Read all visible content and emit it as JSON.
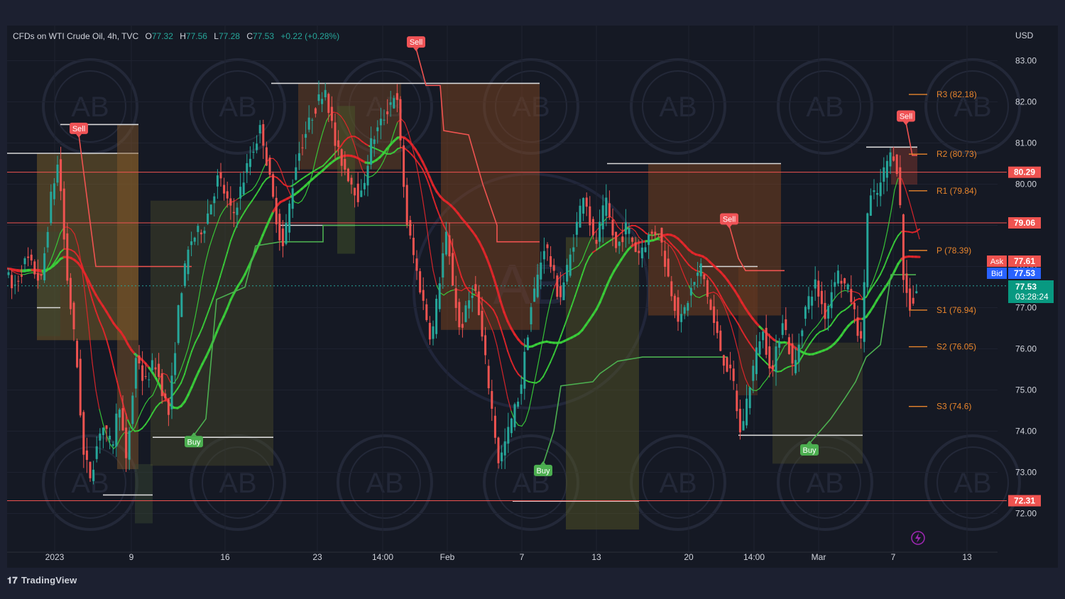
{
  "header": {
    "symbol": "CFDs on WTI Crude Oil, 4h, TVC",
    "open_label": "O",
    "open": "77.32",
    "high_label": "H",
    "high": "77.56",
    "low_label": "L",
    "low": "77.28",
    "close_label": "C",
    "close": "77.53",
    "change": "+0.22 (+0.28%)"
  },
  "currency": "USD",
  "brand": "TradingView",
  "colors": {
    "up": "#26a69a",
    "down": "#ef5350",
    "bg": "#151924",
    "sell": "#f05356",
    "buy": "#4caf50",
    "pivot": "#e8852c",
    "ask": "#ef5350",
    "bid": "#2962ff",
    "last": "#089981"
  },
  "chart_data": {
    "type": "candlestick",
    "title": "CFDs on WTI Crude Oil, 4h, TVC",
    "ylim": [
      71.5,
      83.5
    ],
    "y_ticks": [
      "83.00",
      "82.00",
      "81.00",
      "80.00",
      "79.00",
      "78.00",
      "77.00",
      "76.00",
      "75.00",
      "74.00",
      "73.00",
      "72.00"
    ],
    "x_ticks": [
      "2023",
      "9",
      "16",
      "23",
      "14:00",
      "Feb",
      "7",
      "13",
      "20",
      "14:00",
      "Mar",
      "7",
      "13"
    ],
    "price_path": [
      [
        0,
        78.5
      ],
      [
        20,
        77.4
      ],
      [
        40,
        78.2
      ],
      [
        60,
        77.6
      ],
      [
        75,
        79.8
      ],
      [
        85,
        80.6
      ],
      [
        95,
        78.0
      ],
      [
        110,
        75.8
      ],
      [
        120,
        73.4
      ],
      [
        130,
        72.9
      ],
      [
        145,
        74.2
      ],
      [
        160,
        73.6
      ],
      [
        170,
        74.8
      ],
      [
        180,
        73.2
      ],
      [
        195,
        76.0
      ],
      [
        205,
        75.1
      ],
      [
        220,
        75.7
      ],
      [
        240,
        74.4
      ],
      [
        255,
        77.2
      ],
      [
        270,
        78.6
      ],
      [
        290,
        79.0
      ],
      [
        310,
        80.2
      ],
      [
        330,
        79.2
      ],
      [
        350,
        80.4
      ],
      [
        370,
        81.4
      ],
      [
        385,
        79.8
      ],
      [
        400,
        78.4
      ],
      [
        420,
        80.6
      ],
      [
        440,
        81.6
      ],
      [
        460,
        82.4
      ],
      [
        475,
        80.9
      ],
      [
        490,
        80.3
      ],
      [
        510,
        79.6
      ],
      [
        525,
        81.0
      ],
      [
        545,
        81.7
      ],
      [
        560,
        82.3
      ],
      [
        575,
        79.1
      ],
      [
        590,
        77.8
      ],
      [
        610,
        76.2
      ],
      [
        630,
        78.8
      ],
      [
        650,
        76.4
      ],
      [
        670,
        77.6
      ],
      [
        690,
        75.2
      ],
      [
        705,
        73.2
      ],
      [
        720,
        74.1
      ],
      [
        735,
        75.0
      ],
      [
        750,
        77.0
      ],
      [
        770,
        78.6
      ],
      [
        790,
        77.2
      ],
      [
        805,
        78.2
      ],
      [
        825,
        79.9
      ],
      [
        840,
        78.4
      ],
      [
        855,
        79.6
      ],
      [
        870,
        78.4
      ],
      [
        885,
        79.0
      ],
      [
        900,
        78.3
      ],
      [
        915,
        78.7
      ],
      [
        930,
        78.9
      ],
      [
        945,
        77.6
      ],
      [
        960,
        76.6
      ],
      [
        975,
        77.4
      ],
      [
        990,
        78.0
      ],
      [
        1005,
        76.8
      ],
      [
        1020,
        75.8
      ],
      [
        1035,
        75.2
      ],
      [
        1045,
        73.9
      ],
      [
        1060,
        75.3
      ],
      [
        1075,
        76.5
      ],
      [
        1090,
        75.4
      ],
      [
        1105,
        76.8
      ],
      [
        1120,
        75.4
      ],
      [
        1135,
        76.9
      ],
      [
        1150,
        77.6
      ],
      [
        1165,
        76.8
      ],
      [
        1180,
        77.9
      ],
      [
        1200,
        77.3
      ],
      [
        1215,
        76.1
      ],
      [
        1225,
        79.6
      ],
      [
        1240,
        79.8
      ],
      [
        1250,
        80.5
      ],
      [
        1260,
        80.8
      ],
      [
        1268,
        80.2
      ],
      [
        1275,
        77.6
      ],
      [
        1285,
        77.0
      ],
      [
        1295,
        77.53
      ]
    ],
    "annotations": [
      "Sell",
      "Buy",
      "Sell",
      "Buy",
      "Sell",
      "Buy",
      "Sell"
    ],
    "signals": [
      {
        "label": "Sell",
        "x": 111,
        "price": 81.2
      },
      {
        "label": "Buy",
        "x": 273,
        "price": 73.9
      },
      {
        "label": "Sell",
        "x": 586,
        "price": 83.3
      },
      {
        "label": "Buy",
        "x": 765,
        "price": 73.2
      },
      {
        "label": "Sell",
        "x": 1027,
        "price": 79.0
      },
      {
        "label": "Buy",
        "x": 1140,
        "price": 73.7
      },
      {
        "label": "Sell",
        "x": 1276,
        "price": 81.5
      }
    ],
    "pivots": [
      {
        "label": "R3 (82.18)",
        "price": 82.18
      },
      {
        "label": "R2 (80.73)",
        "price": 80.73
      },
      {
        "label": "R1 (79.84)",
        "price": 79.84
      },
      {
        "label": "P (78.39)",
        "price": 78.39
      },
      {
        "label": "S1 (76.94)",
        "price": 76.94
      },
      {
        "label": "S2 (76.05)",
        "price": 76.05
      },
      {
        "label": "S3 (74.6)",
        "price": 74.6
      }
    ],
    "horizontal_levels": [
      {
        "label": "80.29",
        "price": 80.29
      },
      {
        "label": "79.06",
        "price": 79.06
      },
      {
        "label": "72.31",
        "price": 72.31
      }
    ],
    "price_tags": {
      "ask_label": "Ask",
      "ask": "77.61",
      "bid_label": "Bid",
      "bid": "77.53",
      "last": "77.53",
      "countdown": "03:28:24"
    },
    "watermark": "AB"
  }
}
